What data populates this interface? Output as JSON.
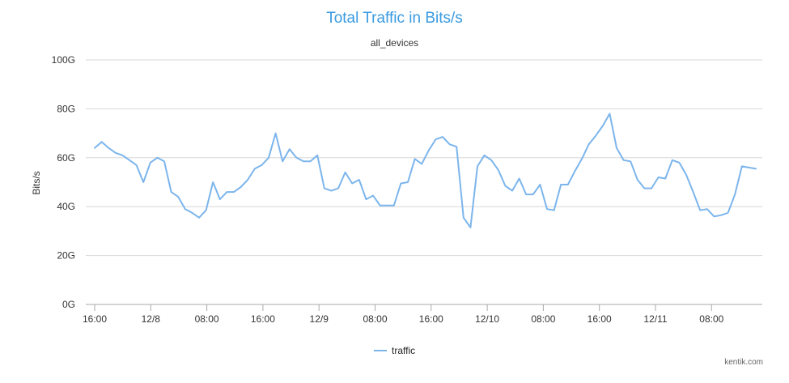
{
  "chart_data": {
    "type": "line",
    "title": "Total Traffic in Bits/s",
    "subtitle": "all_devices",
    "ylabel": "Bits/s",
    "xlabel": "",
    "ylim": [
      0,
      100
    ],
    "yticks": [
      "0G",
      "20G",
      "40G",
      "60G",
      "80G",
      "100G"
    ],
    "xticks": [
      "16:00",
      "12/8",
      "08:00",
      "16:00",
      "12/9",
      "08:00",
      "16:00",
      "12/10",
      "08:00",
      "16:00",
      "12/11",
      "08:00"
    ],
    "grid": true,
    "legend": "bottom-center",
    "series": [
      {
        "name": "traffic",
        "color": "#7cb5ec",
        "values": [
          64,
          66.5,
          64,
          62,
          61,
          59,
          57,
          50,
          58,
          60,
          58.5,
          46,
          44,
          39,
          37.5,
          35.5,
          38.5,
          50,
          43,
          46,
          46,
          48,
          51,
          55.5,
          57,
          60,
          70,
          58.5,
          63.5,
          60,
          58.5,
          58.5,
          61,
          47.5,
          46.5,
          47.5,
          54,
          49.5,
          51,
          43,
          44.5,
          40.5,
          40.5,
          40.5,
          49.5,
          50,
          59.5,
          57.5,
          63,
          67.5,
          68.5,
          65.5,
          64.5,
          35.5,
          31.5,
          56.5,
          61,
          59,
          55,
          48.5,
          46.5,
          51.5,
          45,
          45,
          49,
          39,
          38.5,
          49,
          49,
          54.5,
          59.5,
          65.5,
          69,
          73,
          78,
          64,
          59,
          58.5,
          51,
          47.5,
          47.5,
          52,
          51.5,
          59,
          58,
          53,
          46,
          38.5,
          39,
          36,
          36.5,
          37.5,
          45,
          56.5,
          56,
          55.5
        ]
      }
    ]
  },
  "credit": "kentik.com"
}
